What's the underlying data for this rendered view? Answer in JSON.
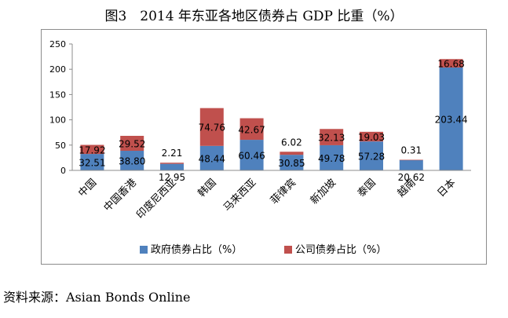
{
  "chart_data": {
    "type": "bar",
    "stacked": true,
    "title": "图3　2014 年东亚各地区债券占 GDP 比重（%）",
    "categories": [
      "中国",
      "中国香港",
      "印度尼西亚",
      "韩国",
      "马来西亚",
      "菲律宾",
      "新加坡",
      "泰国",
      "越南",
      "日本"
    ],
    "series": [
      {
        "name": "政府债券占比（%）",
        "color": "#4f81bd",
        "values": [
          32.51,
          38.8,
          12.95,
          48.44,
          60.46,
          30.85,
          49.78,
          57.28,
          20.62,
          203.44
        ]
      },
      {
        "name": "公司债券占比（%）",
        "color": "#c0504d",
        "values": [
          17.92,
          29.52,
          2.21,
          74.76,
          42.67,
          6.02,
          32.13,
          19.03,
          0.31,
          16.68
        ]
      }
    ],
    "ylim": [
      0,
      250
    ],
    "yticks": [
      "0",
      "50",
      "100",
      "150",
      "200",
      "250"
    ],
    "grid": false,
    "legend_position": "bottom",
    "xlabel": "",
    "ylabel": ""
  },
  "source": "资料来源：Asian Bonds Online"
}
